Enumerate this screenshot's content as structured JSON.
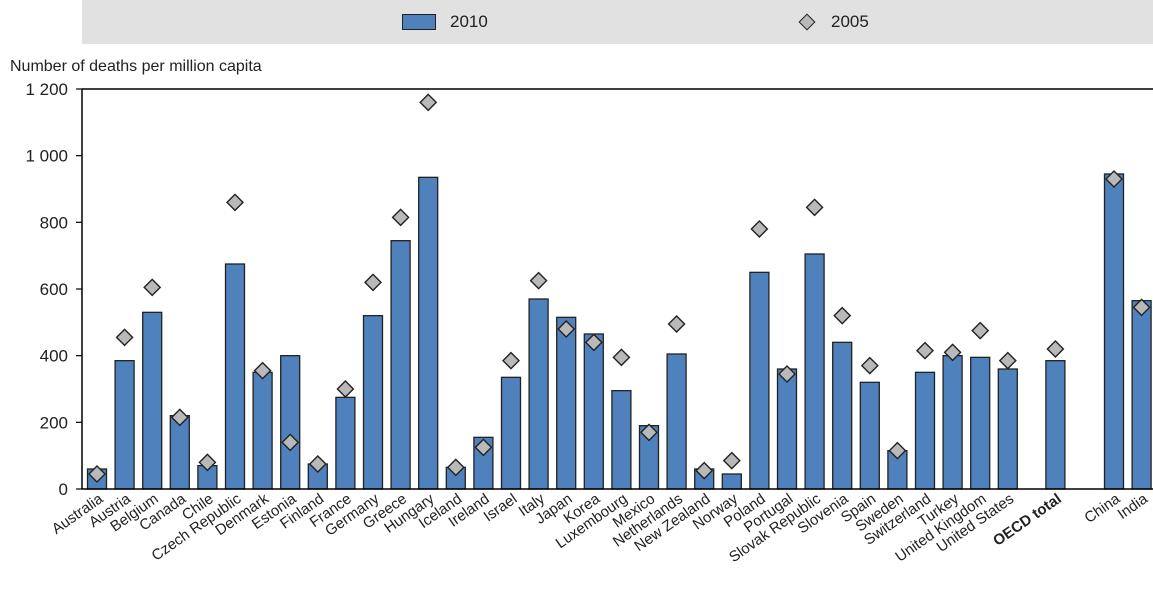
{
  "legend": {
    "bar_label": "2010",
    "marker_label": "2005"
  },
  "colors": {
    "bar": "#4f81bd",
    "marker": "#b9b9b9",
    "outline": "#222222",
    "legend_background": "#e1e1e1"
  },
  "chart_data": {
    "type": "bar",
    "title": "",
    "xlabel": "",
    "ylabel": "Number of deaths per million capita",
    "ylim": [
      0,
      1200
    ],
    "yticks": [
      0,
      200,
      400,
      600,
      800,
      1000,
      1200
    ],
    "ytick_labels": [
      "0",
      "200",
      "400",
      "600",
      "800",
      "1 000",
      "1 200"
    ],
    "grid": false,
    "legend_position": "top",
    "categories": [
      "Australia",
      "Austria",
      "Belgium",
      "Canada",
      "Chile",
      "Czech Republic",
      "Denmark",
      "Estonia",
      "Finland",
      "France",
      "Germany",
      "Greece",
      "Hungary",
      "Iceland",
      "Ireland",
      "Israel",
      "Italy",
      "Japan",
      "Korea",
      "Luxembourg",
      "Mexico",
      "Netherlands",
      "New Zealand",
      "Norway",
      "Poland",
      "Portugal",
      "Slovak Republic",
      "Slovenia",
      "Spain",
      "Sweden",
      "Switzerland",
      "Turkey",
      "United Kingdom",
      "United States",
      "OECD total",
      "China",
      "India"
    ],
    "bold_categories": [
      "OECD total"
    ],
    "series": [
      {
        "name": "2010",
        "kind": "bar",
        "values": [
          60,
          385,
          530,
          220,
          70,
          675,
          350,
          400,
          75,
          275,
          520,
          745,
          935,
          65,
          155,
          335,
          570,
          515,
          465,
          295,
          190,
          405,
          60,
          45,
          650,
          360,
          705,
          440,
          320,
          115,
          350,
          400,
          395,
          360,
          385,
          945,
          565
        ]
      },
      {
        "name": "2005",
        "kind": "marker",
        "values": [
          45,
          455,
          605,
          215,
          80,
          860,
          355,
          140,
          75,
          300,
          620,
          815,
          1160,
          65,
          125,
          385,
          625,
          480,
          440,
          395,
          170,
          495,
          55,
          85,
          780,
          345,
          845,
          520,
          370,
          115,
          415,
          410,
          475,
          385,
          420,
          930,
          545
        ]
      }
    ]
  }
}
